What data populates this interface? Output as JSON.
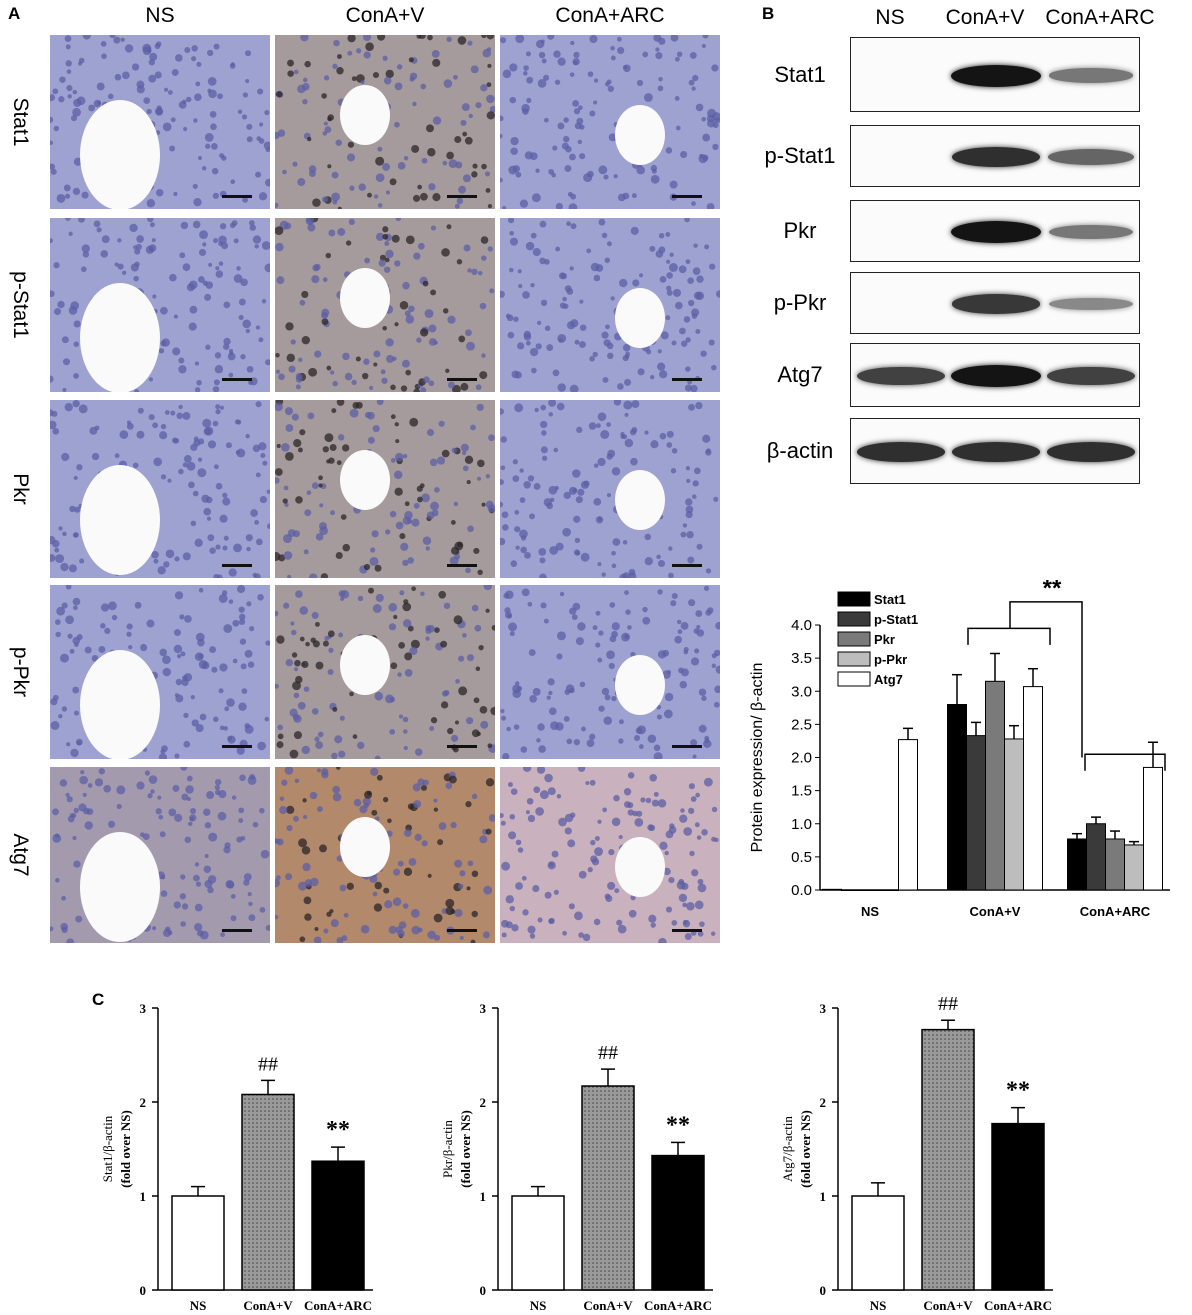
{
  "panel_a": {
    "letter": "A",
    "columns": [
      "NS",
      "ConA+V",
      "ConA+ARC"
    ],
    "rows": [
      "Stat1",
      "p-Stat1",
      "Pkr",
      "p-Pkr",
      "Atg7"
    ]
  },
  "panel_b": {
    "letter": "B",
    "columns": [
      "NS",
      "ConA+V",
      "ConA+ARC"
    ],
    "blots": [
      {
        "label": "Stat1",
        "intensity": [
          0.0,
          1.0,
          0.45
        ]
      },
      {
        "label": "p-Stat1",
        "intensity": [
          0.0,
          0.85,
          0.55
        ]
      },
      {
        "label": "Pkr",
        "intensity": [
          0.0,
          1.0,
          0.45
        ]
      },
      {
        "label": "p-Pkr",
        "intensity": [
          0.0,
          0.8,
          0.35
        ]
      },
      {
        "label": "Atg7",
        "intensity": [
          0.75,
          1.0,
          0.75
        ]
      },
      {
        "label": "β-actin",
        "intensity": [
          0.85,
          0.85,
          0.85
        ]
      }
    ]
  },
  "panel_c": {
    "letter": "C"
  },
  "colors": {
    "stat1": "#000000",
    "p_stat1": "#3a3a3a",
    "pkr": "#7a7a7a",
    "p_pkr": "#bdbdbd",
    "atg7": "#ffffff",
    "tissue_blue": "#8f93c9",
    "tissue_brown": "#b08a6a"
  },
  "chart_data": [
    {
      "type": "bar",
      "panel": "B",
      "categories": [
        "NS",
        "ConA+V",
        "ConA+ARC"
      ],
      "ylabel": "Protein expression/ β-actin",
      "ylim": [
        0,
        4.0
      ],
      "yticks": [
        "0.0",
        "0.5",
        "1.0",
        "1.5",
        "2.0",
        "2.5",
        "3.0",
        "3.5",
        "4.0"
      ],
      "legend_position": "top-left",
      "significance": "**",
      "series": [
        {
          "name": "Stat1",
          "values": [
            0.01,
            2.8,
            0.77
          ],
          "errors": [
            0.0,
            0.45,
            0.08
          ]
        },
        {
          "name": "p-Stat1",
          "values": [
            0.0,
            2.33,
            1.0
          ],
          "errors": [
            0.0,
            0.2,
            0.1
          ]
        },
        {
          "name": "Pkr",
          "values": [
            0.0,
            3.15,
            0.77
          ],
          "errors": [
            0.0,
            0.42,
            0.12
          ]
        },
        {
          "name": "p-Pkr",
          "values": [
            0.0,
            2.28,
            0.68
          ],
          "errors": [
            0.0,
            0.2,
            0.05
          ]
        },
        {
          "name": "Atg7",
          "values": [
            2.27,
            3.07,
            1.85
          ],
          "errors": [
            0.17,
            0.27,
            0.38
          ]
        }
      ]
    },
    {
      "type": "bar",
      "panel": "C",
      "categories": [
        "NS",
        "ConA+V",
        "ConA+ARC"
      ],
      "ylabel_main": "Stat1/β-actin",
      "ylabel_sub": "(fold over NS)",
      "ylim": [
        0,
        3
      ],
      "yticks": [
        "0",
        "1",
        "2",
        "3"
      ],
      "values": [
        1.0,
        2.08,
        1.37
      ],
      "errors": [
        0.1,
        0.15,
        0.15
      ],
      "annotations": [
        "",
        "##",
        "**"
      ]
    },
    {
      "type": "bar",
      "panel": "C",
      "categories": [
        "NS",
        "ConA+V",
        "ConA+ARC"
      ],
      "ylabel_main": "Pkr/β-actin",
      "ylabel_sub": "(fold over NS)",
      "ylim": [
        0,
        3
      ],
      "yticks": [
        "0",
        "1",
        "2",
        "3"
      ],
      "values": [
        1.0,
        2.17,
        1.43
      ],
      "errors": [
        0.1,
        0.18,
        0.14
      ],
      "annotations": [
        "",
        "##",
        "**"
      ]
    },
    {
      "type": "bar",
      "panel": "C",
      "categories": [
        "NS",
        "ConA+V",
        "ConA+ARC"
      ],
      "ylabel_main": "Atg7/β-actin",
      "ylabel_sub": "(fold over NS)",
      "ylim": [
        0,
        3
      ],
      "yticks": [
        "0",
        "1",
        "2",
        "3"
      ],
      "values": [
        1.0,
        2.77,
        1.77
      ],
      "errors": [
        0.14,
        0.1,
        0.17
      ],
      "annotations": [
        "",
        "##",
        "**"
      ]
    }
  ]
}
